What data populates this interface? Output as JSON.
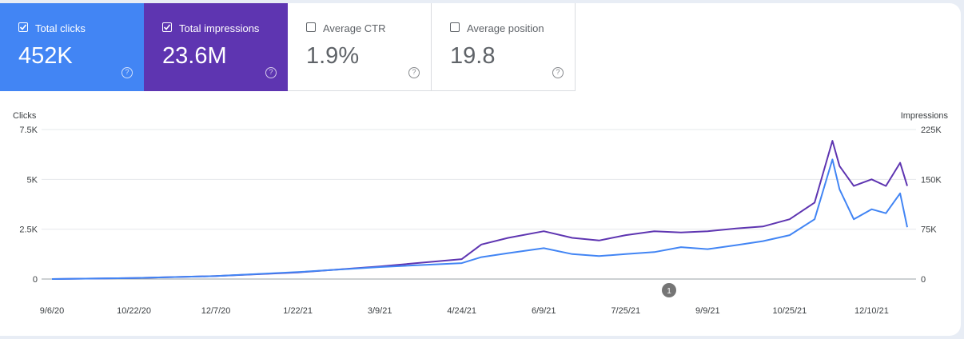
{
  "metrics": [
    {
      "label": "Total clicks",
      "value": "452K",
      "checked": true,
      "color": "#4285f4"
    },
    {
      "label": "Total impressions",
      "value": "23.6M",
      "checked": true,
      "color": "#5e35b1"
    },
    {
      "label": "Average CTR",
      "value": "1.9%",
      "checked": false,
      "color": "#ffffff"
    },
    {
      "label": "Average position",
      "value": "19.8",
      "checked": false,
      "color": "#ffffff"
    }
  ],
  "annotation_marker": "1",
  "chart_data": {
    "type": "line",
    "yleft_label": "Clicks",
    "yright_label": "Impressions",
    "yleft_ticks": [
      "0",
      "2.5K",
      "5K",
      "7.5K"
    ],
    "yright_ticks": [
      "0",
      "75K",
      "150K",
      "225K"
    ],
    "yleft_lim": [
      0,
      7500
    ],
    "yright_lim": [
      0,
      225000
    ],
    "x_tick_labels": [
      "9/6/20",
      "10/22/20",
      "12/7/20",
      "1/22/21",
      "3/9/21",
      "4/24/21",
      "6/9/21",
      "7/25/21",
      "9/9/21",
      "10/25/21",
      "12/10/21"
    ],
    "x": [
      "9/6/20",
      "10/22/20",
      "12/7/20",
      "1/22/21",
      "3/9/21",
      "4/24/21",
      "5/5/21",
      "5/20/21",
      "6/9/21",
      "6/25/21",
      "7/10/21",
      "7/25/21",
      "8/10/21",
      "8/25/21",
      "9/9/21",
      "9/25/21",
      "10/10/21",
      "10/25/21",
      "11/8/21",
      "11/18/21",
      "11/22/21",
      "11/30/21",
      "12/10/21",
      "12/18/21",
      "12/26/21",
      "12/30/21"
    ],
    "series": [
      {
        "name": "Clicks",
        "axis": "left",
        "color": "#4285f4",
        "values": [
          0,
          50,
          150,
          350,
          600,
          800,
          1100,
          1300,
          1550,
          1250,
          1150,
          1250,
          1350,
          1600,
          1500,
          1700,
          1900,
          2200,
          3000,
          6000,
          4500,
          3000,
          3500,
          3300,
          4300,
          2600
        ]
      },
      {
        "name": "Impressions",
        "axis": "right",
        "color": "#5e35b1",
        "values": [
          0,
          1500,
          4500,
          10000,
          19000,
          30000,
          52000,
          62000,
          72000,
          62000,
          58000,
          66000,
          72000,
          70000,
          72000,
          76000,
          79000,
          90000,
          115000,
          208000,
          170000,
          140000,
          150000,
          140000,
          175000,
          140000
        ]
      }
    ]
  }
}
